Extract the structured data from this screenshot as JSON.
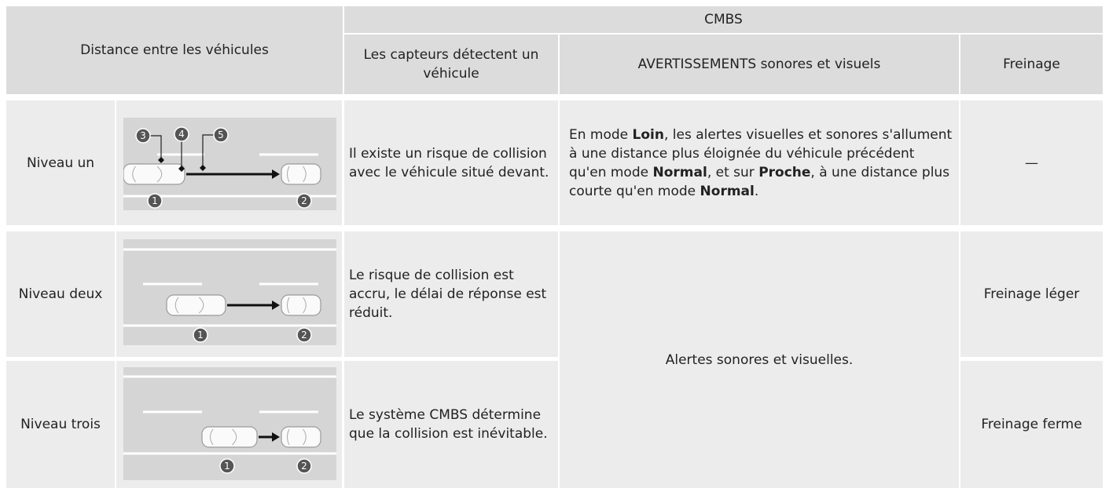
{
  "header": {
    "group_title": "CMBS",
    "distance_title": "Distance entre les véhicules",
    "columns": [
      "Les capteurs détectent un véhicule",
      "AVERTISSEMENTS sonores et visuels",
      "Freinage"
    ]
  },
  "rows": [
    {
      "level": "Niveau un",
      "callouts": [
        "3",
        "4",
        "5",
        "1",
        "2"
      ],
      "detection": "Il existe un risque de collision avec le véhicule situé devant.",
      "warning": [
        {
          "text": "En mode ",
          "bold": false
        },
        {
          "text": "Loin",
          "bold": true
        },
        {
          "text": ", les alertes visuelles et sonores s'allument à une distance plus éloignée du véhicule précédent qu'en mode ",
          "bold": false
        },
        {
          "text": "Normal",
          "bold": true
        },
        {
          "text": ", et sur ",
          "bold": false
        },
        {
          "text": "Proche",
          "bold": true
        },
        {
          "text": ", à une distance plus courte qu'en mode ",
          "bold": false
        },
        {
          "text": "Normal",
          "bold": true
        },
        {
          "text": ".",
          "bold": false
        }
      ],
      "braking": "—"
    },
    {
      "level": "Niveau deux",
      "callouts": [
        "1",
        "2"
      ],
      "detection": "Le risque de collision est accru, le délai de réponse est réduit.",
      "braking": "Freinage léger"
    },
    {
      "level": "Niveau trois",
      "callouts": [
        "1",
        "2"
      ],
      "detection": "Le système CMBS détermine que la collision est inévitable.",
      "braking": "Freinage ferme"
    }
  ],
  "shared_warning": "Alertes sonores et visuelles."
}
